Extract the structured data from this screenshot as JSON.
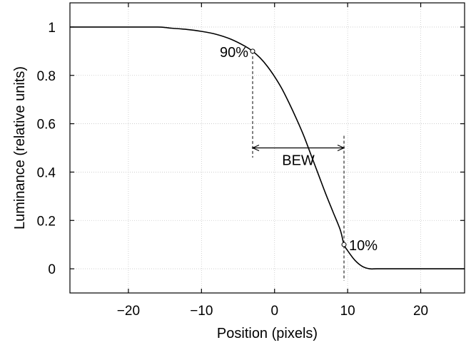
{
  "chart_data": {
    "type": "line",
    "title": "",
    "xlabel": "Position (pixels)",
    "ylabel": "Luminance (relative units)",
    "xlim": [
      -28,
      26
    ],
    "ylim": [
      -0.1,
      1.1
    ],
    "x_ticks": [
      -20,
      -10,
      0,
      10,
      20
    ],
    "x_tick_labels": [
      "−20",
      "−10",
      "0",
      "10",
      "20"
    ],
    "y_ticks": [
      0,
      0.2,
      0.4,
      0.6,
      0.8,
      1
    ],
    "y_tick_labels": [
      "0",
      "0.2",
      "0.4",
      "0.6",
      "0.8",
      "1"
    ],
    "grid": true,
    "series": [
      {
        "x": [
          -28,
          -20,
          -16,
          -15,
          -14,
          -12,
          -10,
          -8,
          -6,
          -4,
          -3,
          -2,
          -1,
          0,
          1,
          2,
          3,
          4,
          5,
          6,
          7,
          8,
          9,
          9.5,
          10,
          11,
          12,
          13,
          14,
          16,
          20,
          26
        ],
        "y": [
          1.0,
          1.0,
          1.0,
          0.998,
          0.995,
          0.99,
          0.982,
          0.97,
          0.95,
          0.92,
          0.9,
          0.873,
          0.838,
          0.795,
          0.745,
          0.685,
          0.62,
          0.55,
          0.47,
          0.39,
          0.31,
          0.235,
          0.16,
          0.1,
          0.075,
          0.035,
          0.01,
          0.0,
          0.0,
          0.0,
          0.0,
          0.0
        ]
      }
    ],
    "annotations": {
      "p90": {
        "label": "90%",
        "x": -3,
        "y": 0.9
      },
      "p10": {
        "label": "10%",
        "x": 9.5,
        "y": 0.1
      },
      "bew": {
        "label": "BEW",
        "x_from": -3,
        "x_to": 9.5,
        "y": 0.5
      }
    }
  }
}
